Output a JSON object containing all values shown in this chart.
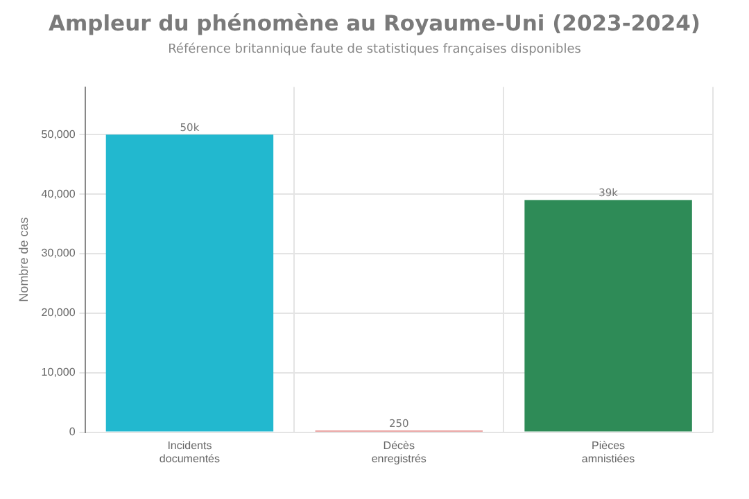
{
  "chart_data": {
    "type": "bar",
    "title": "Ampleur du phénomène au Royaume-Uni (2023-2024)",
    "subtitle": "Référence britannique faute de statistiques françaises disponibles",
    "ylabel": "Nombre de cas",
    "categories": [
      "Incidents documentés",
      "Décès enregistrés",
      "Pièces amnistiées"
    ],
    "values": [
      50000,
      250,
      39000
    ],
    "colors": [
      "#22b8cf",
      "#d9534f",
      "#2e8b57"
    ],
    "value_labels": [
      "50k",
      "250",
      "39k"
    ],
    "ylim": [
      0,
      58000
    ],
    "yticks": [
      {
        "value": 0,
        "label": "0"
      },
      {
        "value": 10000,
        "label": "10,000"
      },
      {
        "value": 20000,
        "label": "20,000"
      },
      {
        "value": 30000,
        "label": "30,000"
      },
      {
        "value": 40000,
        "label": "40,000"
      },
      {
        "value": 50000,
        "label": "50,000"
      }
    ],
    "grid": true,
    "legend": false
  }
}
